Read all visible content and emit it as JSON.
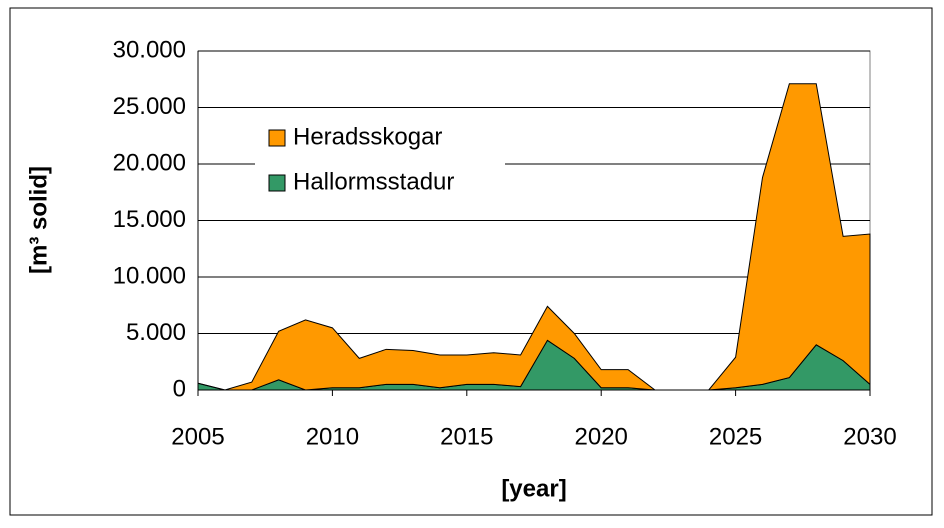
{
  "chart_data": {
    "type": "stacked_area",
    "x_label": "[year]",
    "y_label": "[m³ solid]",
    "x": [
      2005,
      2006,
      2007,
      2008,
      2009,
      2010,
      2011,
      2012,
      2013,
      2014,
      2015,
      2016,
      2017,
      2018,
      2019,
      2020,
      2021,
      2022,
      2023,
      2024,
      2025,
      2026,
      2027,
      2028,
      2029,
      2030
    ],
    "series": [
      {
        "name": "Heradsskogar",
        "color": "#ff9900",
        "values": [
          0,
          0,
          700,
          4300,
          6200,
          5300,
          2600,
          3100,
          3000,
          2900,
          2600,
          2800,
          2800,
          3000,
          2200,
          1600,
          1600,
          0,
          0,
          0,
          2700,
          18300,
          26000,
          23100,
          11000,
          13300
        ]
      },
      {
        "name": "Hallormsstadur",
        "color": "#339966",
        "values": [
          600,
          0,
          0,
          900,
          0,
          200,
          200,
          500,
          500,
          200,
          500,
          500,
          300,
          4400,
          2800,
          200,
          200,
          0,
          0,
          0,
          200,
          500,
          1100,
          4000,
          2600,
          500
        ]
      }
    ],
    "xlim": [
      2005,
      2030
    ],
    "xticks": [
      2005,
      2010,
      2015,
      2020,
      2025,
      2030
    ],
    "ylim": [
      0,
      30000
    ],
    "yticks": [
      0,
      {
        "value": 5000,
        "label": "5.000"
      },
      {
        "value": 10000,
        "label": "10.000"
      },
      {
        "value": 15000,
        "label": "15.000"
      },
      {
        "value": 20000,
        "label": "20.000"
      },
      {
        "value": 25000,
        "label": "25.000"
      },
      {
        "value": 30000,
        "label": "30.000"
      }
    ],
    "grid": true,
    "legend": "upper left"
  }
}
